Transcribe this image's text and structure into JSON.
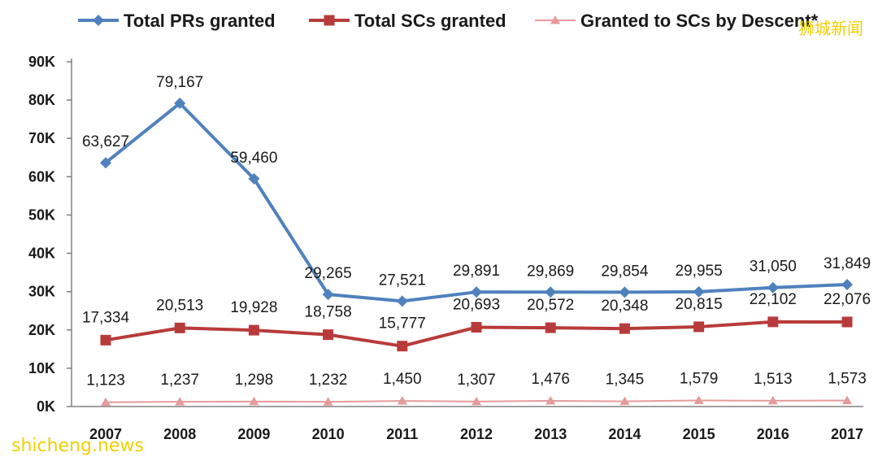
{
  "watermark_top": "狮城新闻",
  "watermark_bottom": "shicheng.news",
  "chart_data": {
    "type": "line",
    "title": "",
    "xlabel": "",
    "ylabel": "",
    "x": [
      "2007",
      "2008",
      "2009",
      "2010",
      "2011",
      "2012",
      "2013",
      "2014",
      "2015",
      "2016",
      "2017"
    ],
    "ylim": [
      0,
      90000
    ],
    "yticks": [
      0,
      10000,
      20000,
      30000,
      40000,
      50000,
      60000,
      70000,
      80000,
      90000
    ],
    "ytick_labels": [
      "0K",
      "10K",
      "20K",
      "30K",
      "40K",
      "50K",
      "60K",
      "70K",
      "80K",
      "90K"
    ],
    "grid": false,
    "legend_position": "top",
    "series": [
      {
        "name": "Total PRs granted",
        "color": "#4f81bd",
        "marker": "diamond",
        "values": [
          63627,
          79167,
          59460,
          29265,
          27521,
          29891,
          29869,
          29854,
          29955,
          31050,
          31849
        ],
        "labels": [
          "63,627",
          "79,167",
          "59,460",
          "29,265",
          "27,521",
          "29,891",
          "29,869",
          "29,854",
          "29,955",
          "31,050",
          "31,849"
        ]
      },
      {
        "name": "Total SCs granted",
        "color": "#b83b3b",
        "marker": "square",
        "values": [
          17334,
          20513,
          19928,
          18758,
          15777,
          20693,
          20572,
          20348,
          20815,
          22102,
          22076
        ],
        "labels": [
          "17,334",
          "20,513",
          "19,928",
          "18,758",
          "15,777",
          "20,693",
          "20,572",
          "20,348",
          "20,815",
          "22,102",
          "22,076"
        ]
      },
      {
        "name": "Granted to SCs by Descent*",
        "color": "#e69a9a",
        "marker": "triangle",
        "values": [
          1123,
          1237,
          1298,
          1232,
          1450,
          1307,
          1476,
          1345,
          1579,
          1513,
          1573
        ],
        "labels": [
          "1,123",
          "1,237",
          "1,298",
          "1,232",
          "1,450",
          "1,307",
          "1,476",
          "1,345",
          "1,579",
          "1,513",
          "1,573"
        ]
      }
    ]
  }
}
